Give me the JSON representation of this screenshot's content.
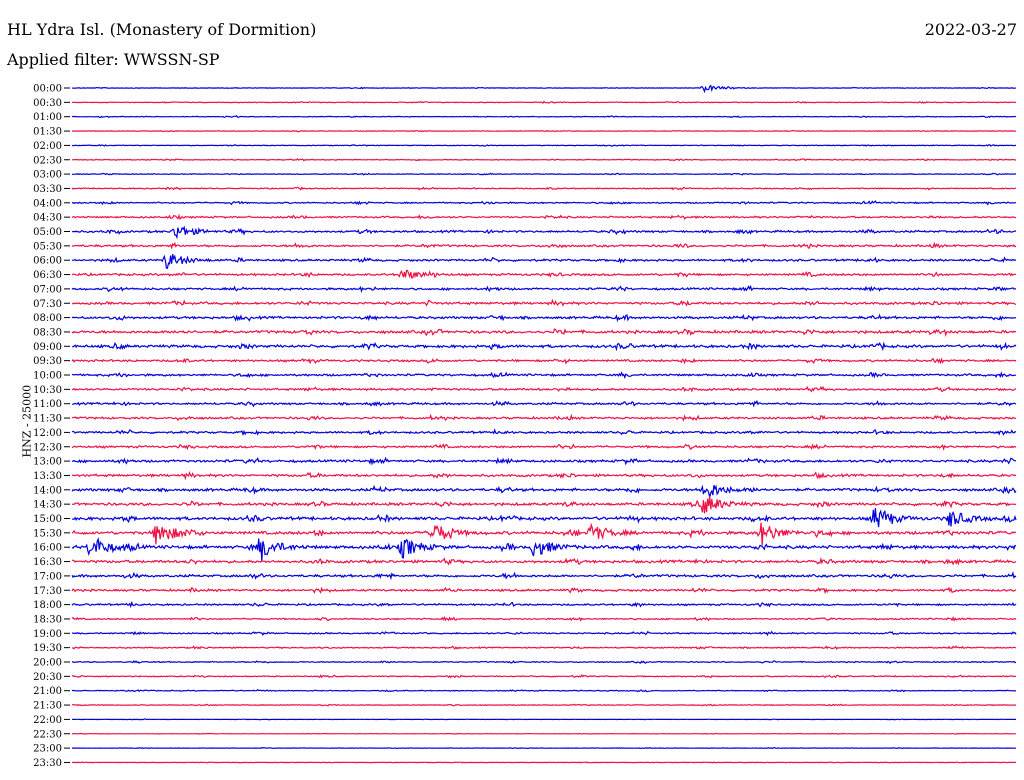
{
  "header": {
    "station": "HL Ydra Isl. (Monastery of Dormition)",
    "date": "2022-03-27",
    "filter_label": "Applied filter:",
    "filter_value": "WWSSN-SP"
  },
  "axis": {
    "channel_label": "HNZ - 25000"
  },
  "colors": {
    "trace_a": "#0000dd",
    "trace_b": "#ee1144"
  },
  "chart_data": {
    "type": "line",
    "title": "HL Ydra Isl. (Monastery of Dormition)",
    "subtitle": "Applied filter: WWSSN-SP",
    "ylabel": "HNZ - 25000",
    "xlabel": "",
    "grid": false,
    "legend": "none",
    "row_labels": [
      "00:00",
      "00:30",
      "01:00",
      "01:30",
      "02:00",
      "02:30",
      "03:00",
      "03:30",
      "04:00",
      "04:30",
      "05:00",
      "05:30",
      "06:00",
      "06:30",
      "07:00",
      "07:30",
      "08:00",
      "08:30",
      "09:00",
      "09:30",
      "10:00",
      "10:30",
      "11:00",
      "11:30",
      "12:00",
      "12:30",
      "13:00",
      "13:30",
      "14:00",
      "14:30",
      "15:00",
      "15:30",
      "16:00",
      "16:30",
      "17:00",
      "17:30",
      "18:00",
      "18:30",
      "19:00",
      "19:30",
      "20:00",
      "20:30",
      "21:00",
      "21:30",
      "22:00",
      "22:30",
      "23:00",
      "23:30"
    ],
    "row_colors": [
      "trace_a",
      "trace_b",
      "trace_a",
      "trace_b",
      "trace_a",
      "trace_b",
      "trace_a",
      "trace_b",
      "trace_a",
      "trace_b",
      "trace_a",
      "trace_b",
      "trace_a",
      "trace_b",
      "trace_a",
      "trace_b",
      "trace_a",
      "trace_b",
      "trace_a",
      "trace_b",
      "trace_a",
      "trace_b",
      "trace_a",
      "trace_b",
      "trace_a",
      "trace_b",
      "trace_a",
      "trace_b",
      "trace_a",
      "trace_b",
      "trace_a",
      "trace_b",
      "trace_a",
      "trace_b",
      "trace_a",
      "trace_b",
      "trace_a",
      "trace_b",
      "trace_a",
      "trace_b",
      "trace_a",
      "trace_b",
      "trace_a",
      "trace_b",
      "trace_a",
      "trace_b",
      "trace_a",
      "trace_b"
    ],
    "row_noise_level": [
      0.15,
      0.2,
      0.2,
      0.15,
      0.2,
      0.25,
      0.2,
      0.3,
      0.4,
      0.5,
      0.6,
      0.6,
      0.6,
      0.6,
      0.6,
      0.7,
      0.7,
      0.8,
      0.8,
      0.6,
      0.6,
      0.6,
      0.6,
      0.6,
      0.6,
      0.6,
      0.7,
      0.7,
      0.8,
      0.8,
      0.9,
      0.9,
      0.9,
      0.8,
      0.7,
      0.6,
      0.5,
      0.4,
      0.4,
      0.35,
      0.3,
      0.3,
      0.25,
      0.2,
      0.1,
      0.1,
      0.1,
      0.1
    ],
    "events": [
      {
        "row": 0,
        "x": 0.67,
        "amp": 1.2
      },
      {
        "row": 10,
        "x": 0.11,
        "amp": 2.5
      },
      {
        "row": 12,
        "x": 0.1,
        "amp": 3.0
      },
      {
        "row": 13,
        "x": 0.35,
        "amp": 2.0
      },
      {
        "row": 28,
        "x": 0.67,
        "amp": 3.5
      },
      {
        "row": 31,
        "x": 0.09,
        "amp": 4.5
      },
      {
        "row": 31,
        "x": 0.38,
        "amp": 3.5
      },
      {
        "row": 31,
        "x": 0.55,
        "amp": 3.0
      },
      {
        "row": 31,
        "x": 0.73,
        "amp": 4.0
      },
      {
        "row": 32,
        "x": 0.02,
        "amp": 4.0
      },
      {
        "row": 32,
        "x": 0.2,
        "amp": 4.0
      },
      {
        "row": 32,
        "x": 0.35,
        "amp": 3.5
      },
      {
        "row": 32,
        "x": 0.49,
        "amp": 3.5
      },
      {
        "row": 30,
        "x": 0.85,
        "amp": 3.5
      },
      {
        "row": 30,
        "x": 0.93,
        "amp": 3.0
      },
      {
        "row": 29,
        "x": 0.67,
        "amp": 3.5
      }
    ]
  }
}
